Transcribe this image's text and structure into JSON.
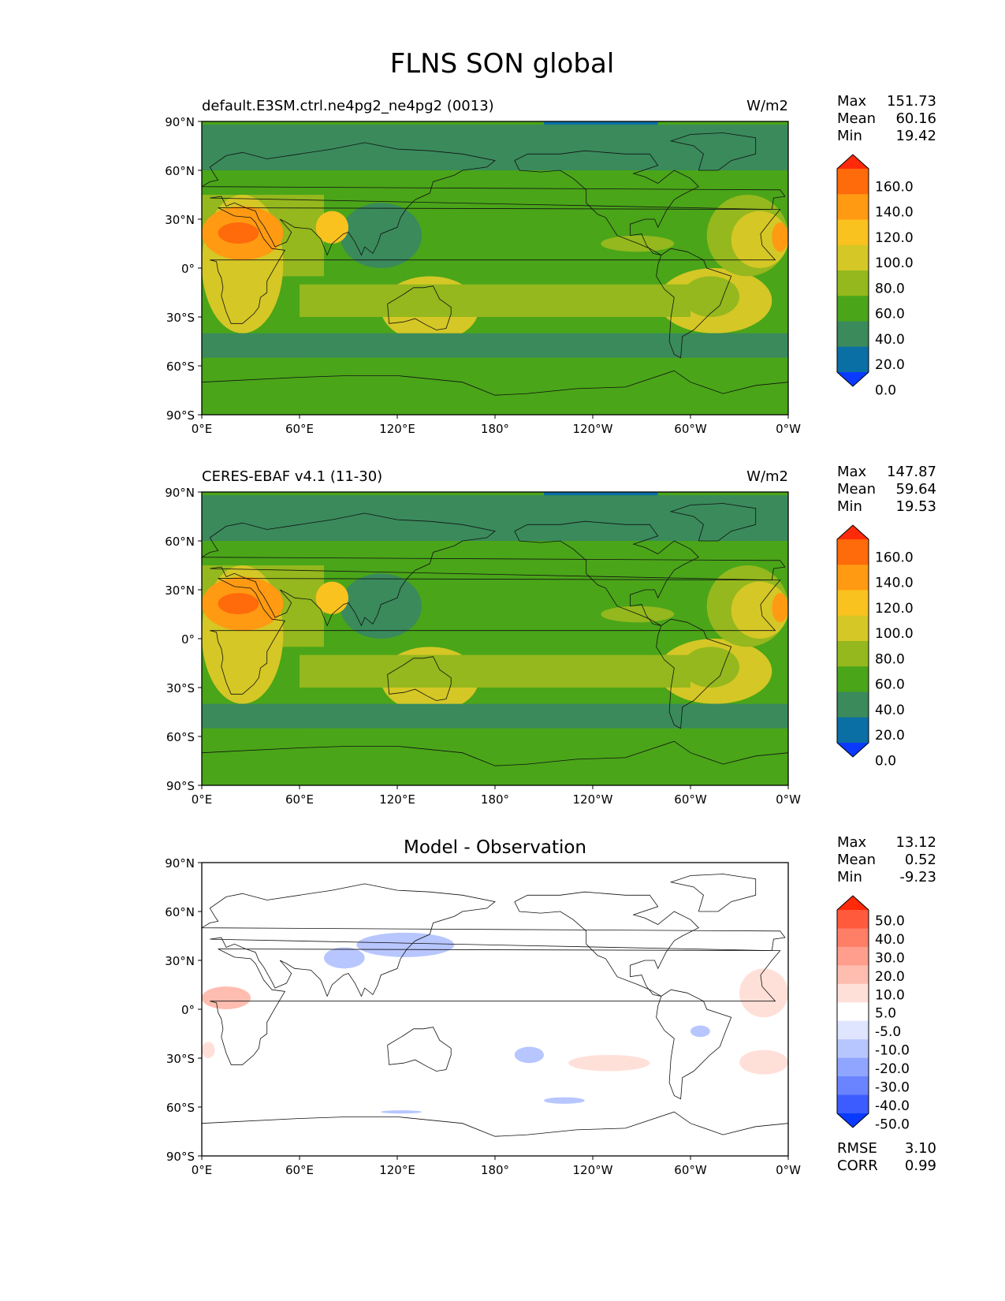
{
  "figure_title": "FLNS SON global",
  "panels": [
    {
      "left_title": "default.E3SM.ctrl.ne4pg2_ne4pg2 (0013)",
      "right_title": "W/m2",
      "center_title": "",
      "stats": [
        {
          "label": "Max",
          "value": "151.73"
        },
        {
          "label": "Mean",
          "value": "60.16"
        },
        {
          "label": "Min",
          "value": "19.42"
        }
      ],
      "colorbar_levels": [
        "160.0",
        "140.0",
        "120.0",
        "100.0",
        "80.0",
        "60.0",
        "40.0",
        "20.0",
        "0.0"
      ],
      "colorbar_colors": [
        "#ff2a0a",
        "#ff6a0a",
        "#ff9a12",
        "#f9c21f",
        "#d5c726",
        "#94b81d",
        "#4aa519",
        "#3a8a5c",
        "#0a6fa5",
        "#0a3aff"
      ]
    },
    {
      "left_title": "CERES-EBAF v4.1 (11-30)",
      "right_title": "W/m2",
      "center_title": "",
      "stats": [
        {
          "label": "Max",
          "value": "147.87"
        },
        {
          "label": "Mean",
          "value": "59.64"
        },
        {
          "label": "Min",
          "value": "19.53"
        }
      ],
      "colorbar_levels": [
        "160.0",
        "140.0",
        "120.0",
        "100.0",
        "80.0",
        "60.0",
        "40.0",
        "20.0",
        "0.0"
      ],
      "colorbar_colors": [
        "#ff2a0a",
        "#ff6a0a",
        "#ff9a12",
        "#f9c21f",
        "#d5c726",
        "#94b81d",
        "#4aa519",
        "#3a8a5c",
        "#0a6fa5",
        "#0a3aff"
      ]
    },
    {
      "left_title": "",
      "right_title": "",
      "center_title": "Model - Observation",
      "stats": [
        {
          "label": "Max",
          "value": "13.12"
        },
        {
          "label": "Mean",
          "value": "0.52"
        },
        {
          "label": "Min",
          "value": "-9.23"
        }
      ],
      "colorbar_levels": [
        "50.0",
        "40.0",
        "30.0",
        "20.0",
        "10.0",
        "5.0",
        "-5.0",
        "-10.0",
        "-20.0",
        "-30.0",
        "-40.0",
        "-50.0"
      ],
      "colorbar_colors": [
        "#ff2a0a",
        "#ff5a3c",
        "#ff7e66",
        "#ff9e8c",
        "#ffbdb0",
        "#ffe0d8",
        "#ffffff",
        "#dfe4ff",
        "#b8c6ff",
        "#8fa5ff",
        "#6a84ff",
        "#3c5cff",
        "#0a3aff"
      ],
      "error_stats": [
        {
          "label": "RMSE",
          "value": "3.10"
        },
        {
          "label": "CORR",
          "value": "0.99"
        }
      ]
    }
  ],
  "lat_ticks": [
    "90°N",
    "60°N",
    "30°N",
    "0°",
    "30°S",
    "60°S",
    "90°S"
  ],
  "lon_ticks": [
    "0°E",
    "60°E",
    "120°E",
    "180°",
    "120°W",
    "60°W",
    "0°W"
  ]
}
